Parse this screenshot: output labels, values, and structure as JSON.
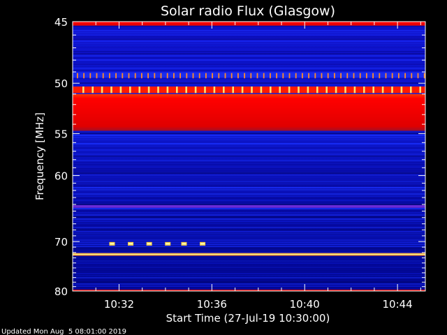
{
  "chart_data": {
    "type": "heatmap",
    "title": "Solar radio Flux (Glasgow)",
    "xlabel": "Start Time (27-Jul-19 10:30:00)",
    "ylabel": "Frequency [MHz]",
    "footer": "Updated Mon Aug  5 08:01:00 2019",
    "x_range_minutes": [
      0,
      15.2
    ],
    "x_ticks": [
      {
        "label": "10:32",
        "minute": 2
      },
      {
        "label": "10:36",
        "minute": 6
      },
      {
        "label": "10:40",
        "minute": 10
      },
      {
        "label": "10:44",
        "minute": 14
      }
    ],
    "y_range_mhz": [
      45,
      80
    ],
    "y_ticks": [
      45,
      50,
      55,
      60,
      70,
      80
    ],
    "y_scale": "reciprocal",
    "colors": {
      "background": "#000000",
      "low": "#00009a",
      "mid": "#2a3cff",
      "high": "#ff0000",
      "hot": "#ffff66"
    },
    "bands": [
      {
        "from": 45.0,
        "to": 45.3,
        "level": "high"
      },
      {
        "from": 49.1,
        "to": 49.5,
        "level": "bursts"
      },
      {
        "from": 50.3,
        "to": 50.9,
        "level": "hot-bursts"
      },
      {
        "from": 51.0,
        "to": 54.7,
        "level": "high"
      },
      {
        "from": 64.1,
        "to": 64.5,
        "level": "violet"
      },
      {
        "from": 72.1,
        "to": 72.6,
        "level": "hot-line"
      },
      {
        "from": 79.7,
        "to": 80.0,
        "level": "high"
      }
    ],
    "markers": {
      "frequency": 70.4,
      "minutes": [
        1.7,
        2.5,
        3.3,
        4.1,
        4.8,
        5.6
      ]
    }
  }
}
